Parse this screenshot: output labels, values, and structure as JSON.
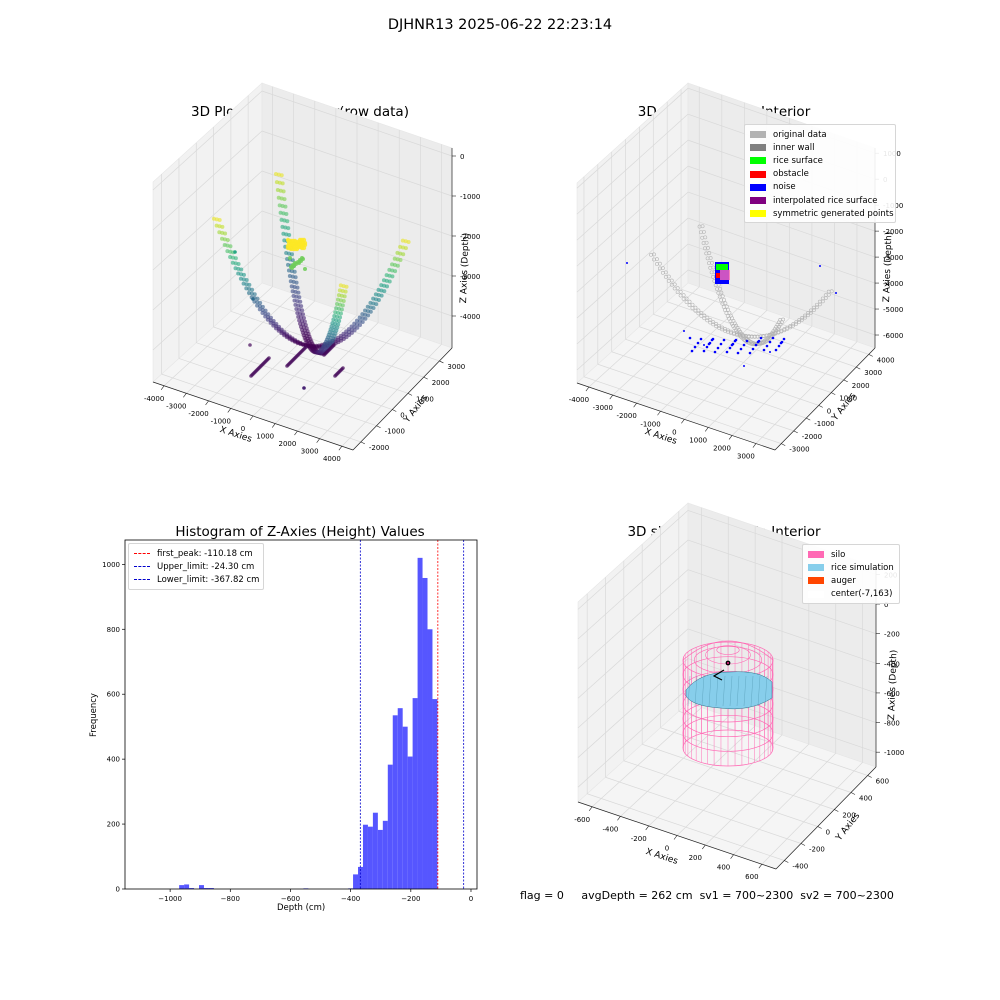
{
  "suptitle": "DJHNR13 2025-06-22 22:23:14",
  "status_line": {
    "flag": "flag = 0",
    "avg_depth": "avgDepth = 262 cm",
    "sv1": "sv1 = 700~2300",
    "sv2": "sv2 = 700~2300"
  },
  "chart_data": [
    {
      "type": "scatter",
      "title": "3D Plot of Silo Interior(row data)",
      "xlabel": "X Axies",
      "ylabel": "Y Axies",
      "zlabel": "Z Axies (Depth)",
      "xticks": [
        -4000,
        -3000,
        -2000,
        -1000,
        0,
        1000,
        2000,
        3000,
        4000
      ],
      "yticks": [
        -2000,
        -1000,
        0,
        1000,
        2000,
        3000
      ],
      "zticks": [
        0,
        -1000,
        -2000,
        -3000,
        -4000
      ],
      "xlim": [
        -4500,
        4500
      ],
      "ylim": [
        -2500,
        3800
      ],
      "zlim": [
        -4800,
        200
      ],
      "colormap": "viridis (by depth)"
    },
    {
      "type": "scatter",
      "title": "3D classify of Silo Interior",
      "xlabel": "X Axies",
      "ylabel": "Y Axies",
      "zlabel": "Z Axies (Depth)",
      "xticks": [
        -4000,
        -3000,
        -2000,
        -1000,
        0,
        1000,
        2000,
        3000
      ],
      "yticks": [
        -3000,
        -2000,
        -1000,
        0,
        1000,
        2000,
        3000,
        4000
      ],
      "zticks": [
        1000,
        0,
        -1000,
        -2000,
        -3000,
        -4000,
        -5000,
        -6000
      ],
      "xlim": [
        -4500,
        3800
      ],
      "ylim": [
        -3500,
        4500
      ],
      "zlim": [
        -6500,
        1200
      ],
      "legend_position": "top-right",
      "legend": [
        {
          "name": "original data",
          "color": "#b3b3b3"
        },
        {
          "name": "inner wall",
          "color": "#808080"
        },
        {
          "name": "rice surface",
          "color": "#00ff00"
        },
        {
          "name": "obstacle",
          "color": "#ff0000"
        },
        {
          "name": "noise",
          "color": "#0000ff"
        },
        {
          "name": "interpolated rice surface",
          "color": "#800080"
        },
        {
          "name": "symmetric generated points",
          "color": "#ffff00"
        }
      ]
    },
    {
      "type": "bar",
      "title": "Histogram of Z-Axies (Height) Values",
      "xlabel": "Depth (cm)",
      "ylabel": "Frequency",
      "xlim": [
        -1150,
        20
      ],
      "ylim": [
        0,
        1075
      ],
      "xticks": [
        -1000,
        -800,
        -600,
        -400,
        -200,
        0
      ],
      "yticks": [
        0,
        200,
        400,
        600,
        800,
        1000
      ],
      "bin_width": 16.5,
      "bar_color": "#4d4dff",
      "bins": [
        {
          "x0": -970,
          "count": 12
        },
        {
          "x0": -953.5,
          "count": 14
        },
        {
          "x0": -937,
          "count": 3
        },
        {
          "x0": -904,
          "count": 12
        },
        {
          "x0": -887.5,
          "count": 3
        },
        {
          "x0": -871,
          "count": 3
        },
        {
          "x0": -557,
          "count": 2
        },
        {
          "x0": -408,
          "count": 2
        },
        {
          "x0": -392,
          "count": 45
        },
        {
          "x0": -375.5,
          "count": 68
        },
        {
          "x0": -359,
          "count": 198
        },
        {
          "x0": -342.5,
          "count": 192
        },
        {
          "x0": -326,
          "count": 235
        },
        {
          "x0": -309.5,
          "count": 182
        },
        {
          "x0": -293,
          "count": 210
        },
        {
          "x0": -276.5,
          "count": 383
        },
        {
          "x0": -260,
          "count": 535
        },
        {
          "x0": -243.5,
          "count": 557
        },
        {
          "x0": -227,
          "count": 500
        },
        {
          "x0": -210.5,
          "count": 408
        },
        {
          "x0": -194,
          "count": 588
        },
        {
          "x0": -177.5,
          "count": 1020
        },
        {
          "x0": -161,
          "count": 958
        },
        {
          "x0": -144.5,
          "count": 800
        },
        {
          "x0": -128,
          "count": 585
        }
      ],
      "vlines": [
        {
          "label": "first_peak: -110.18 cm",
          "value": -110.18,
          "color": "#ff0000"
        },
        {
          "label": "Upper_limit: -24.30 cm",
          "value": -24.3,
          "color": "#0000cc"
        },
        {
          "label": "Lower_limit: -367.82 cm",
          "value": -367.82,
          "color": "#0000cc"
        }
      ],
      "legend_position": "top-left"
    },
    {
      "type": "scatter",
      "title": "3D simulation of Silo Interior",
      "xlabel": "X Axies",
      "ylabel": "Y Axies",
      "zlabel": "Z Axies (Depth)",
      "xticks": [
        -600,
        -400,
        -200,
        0,
        200,
        400,
        600
      ],
      "yticks": [
        -400,
        -200,
        0,
        200,
        400,
        600
      ],
      "zticks": [
        200,
        0,
        -200,
        -400,
        -600,
        -800,
        -1000
      ],
      "xlim": [
        -700,
        700
      ],
      "ylim": [
        -500,
        700
      ],
      "zlim": [
        -1100,
        250
      ],
      "legend_position": "top-right",
      "legend": [
        {
          "name": "silo",
          "color": "#ff69b4"
        },
        {
          "name": "rice simulation",
          "color": "#87ceeb"
        },
        {
          "name": "auger",
          "color": "#ff4500"
        },
        {
          "name": "center(-7,163)",
          "color": "#ffffff"
        }
      ]
    }
  ]
}
